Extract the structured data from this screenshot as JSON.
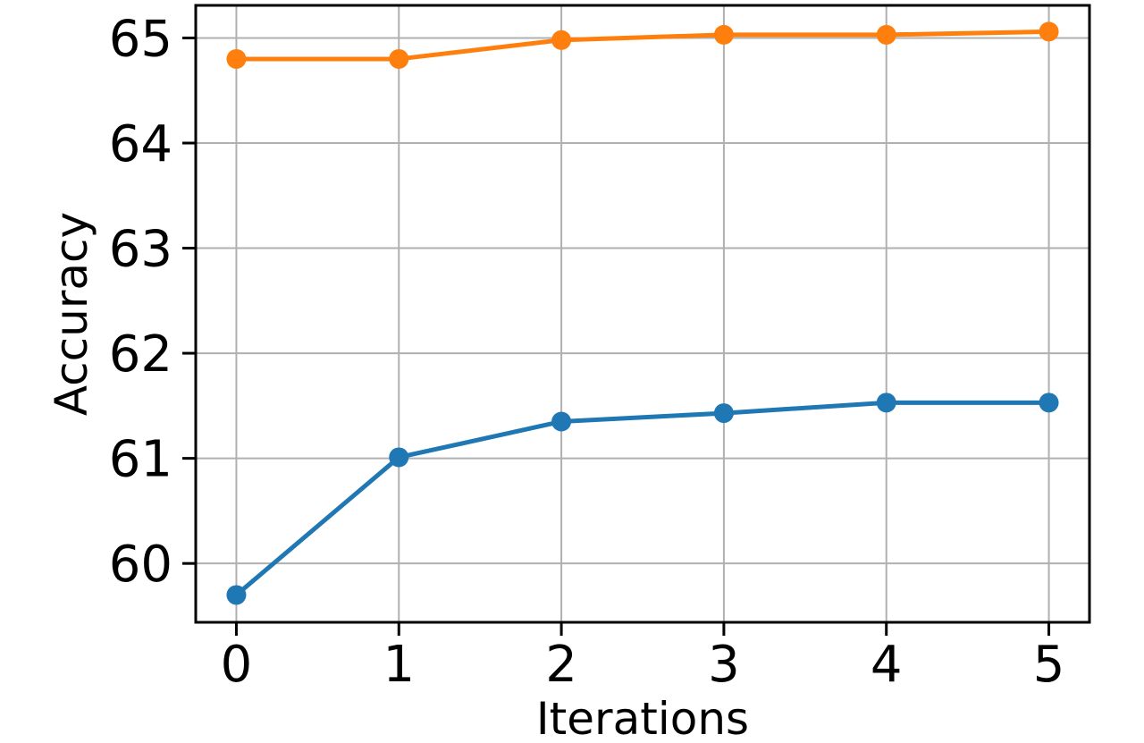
{
  "figure": {
    "background_color": "#ffffff"
  },
  "chart_data": {
    "type": "line",
    "title": "",
    "xlabel": "Iterations",
    "ylabel": "Accuracy",
    "x": [
      0,
      1,
      2,
      3,
      4,
      5
    ],
    "series": [
      {
        "name": "blue-series",
        "color": "#1f77b4",
        "marker": "circle",
        "values": [
          59.7,
          61.01,
          61.35,
          61.43,
          61.53,
          61.53
        ]
      },
      {
        "name": "orange-series",
        "color": "#ff7f0e",
        "marker": "circle",
        "values": [
          64.8,
          64.8,
          64.98,
          65.03,
          65.03,
          65.06
        ]
      }
    ],
    "xticks": [
      0,
      1,
      2,
      3,
      4,
      5
    ],
    "xtick_labels": [
      "0",
      "1",
      "2",
      "3",
      "4",
      "5"
    ],
    "yticks": [
      60,
      61,
      62,
      63,
      64,
      65
    ],
    "ytick_labels": [
      "60",
      "61",
      "62",
      "63",
      "64",
      "65"
    ],
    "xlim": [
      -0.25,
      5.25
    ],
    "ylim": [
      59.44,
      65.31
    ],
    "grid": true,
    "grid_color": "#b0b0b0",
    "spine_color": "#000000",
    "legend_position": "none"
  }
}
